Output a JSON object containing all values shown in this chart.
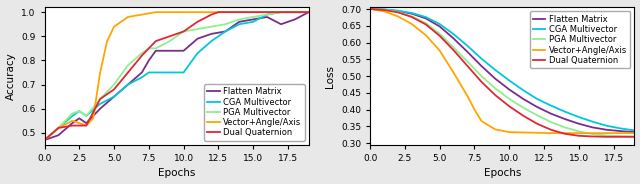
{
  "left": {
    "xlabel": "Epochs",
    "ylabel": "Accuracy",
    "xlim": [
      0,
      19
    ],
    "ylim": [
      0.45,
      1.02
    ],
    "xticks": [
      0.0,
      2.5,
      5.0,
      7.5,
      10.0,
      12.5,
      15.0,
      17.5
    ],
    "yticks": [
      0.5,
      0.6,
      0.7,
      0.8,
      0.9,
      1.0
    ],
    "series": {
      "Flatten Matrix": {
        "color": "#7b2d8b",
        "x": [
          0,
          1,
          2,
          2.5,
          3,
          4,
          5,
          6,
          7,
          7.5,
          8,
          9,
          10,
          11,
          12,
          13,
          14,
          15,
          16,
          17,
          18,
          19
        ],
        "y": [
          0.47,
          0.49,
          0.54,
          0.56,
          0.54,
          0.6,
          0.65,
          0.7,
          0.75,
          0.8,
          0.84,
          0.84,
          0.84,
          0.89,
          0.91,
          0.92,
          0.96,
          0.97,
          0.98,
          0.95,
          0.97,
          1.0
        ]
      },
      "CGA Multivector": {
        "color": "#00c8d8",
        "x": [
          0,
          1,
          2,
          2.5,
          3,
          4,
          5,
          6,
          7,
          7.5,
          8,
          9,
          10,
          11,
          12,
          13,
          14,
          15,
          16,
          17,
          18,
          19
        ],
        "y": [
          0.47,
          0.52,
          0.57,
          0.59,
          0.57,
          0.62,
          0.65,
          0.7,
          0.73,
          0.75,
          0.75,
          0.75,
          0.75,
          0.83,
          0.88,
          0.92,
          0.95,
          0.96,
          0.99,
          1.0,
          1.0,
          1.0
        ]
      },
      "PGA Multivector": {
        "color": "#90ee90",
        "x": [
          0,
          1,
          2,
          2.5,
          3,
          4,
          5,
          6,
          7,
          7.5,
          8,
          9,
          10,
          11,
          12,
          13,
          14,
          15,
          16,
          17,
          18,
          19
        ],
        "y": [
          0.47,
          0.52,
          0.58,
          0.59,
          0.57,
          0.64,
          0.7,
          0.78,
          0.83,
          0.85,
          0.85,
          0.88,
          0.92,
          0.93,
          0.94,
          0.95,
          0.97,
          0.98,
          0.99,
          1.0,
          1.0,
          1.0
        ]
      },
      "Vector+Angle/Axis": {
        "color": "#ffa500",
        "x": [
          0,
          1,
          2,
          2.5,
          3,
          3.5,
          4,
          4.5,
          5,
          6,
          7,
          8,
          9,
          10,
          11,
          12,
          13,
          14,
          15,
          16,
          17,
          18,
          19
        ],
        "y": [
          0.47,
          0.52,
          0.55,
          0.54,
          0.53,
          0.56,
          0.75,
          0.88,
          0.94,
          0.98,
          0.99,
          1.0,
          1.0,
          1.0,
          1.0,
          1.0,
          1.0,
          1.0,
          1.0,
          1.0,
          1.0,
          1.0,
          1.0
        ]
      },
      "Dual Quaternion": {
        "color": "#e32636",
        "x": [
          0,
          1,
          2,
          2.5,
          3,
          4,
          5,
          6,
          7,
          7.5,
          8,
          9,
          10,
          11,
          12,
          12.5,
          13,
          14,
          15,
          16,
          17,
          18,
          19
        ],
        "y": [
          0.47,
          0.52,
          0.53,
          0.53,
          0.53,
          0.64,
          0.68,
          0.75,
          0.82,
          0.85,
          0.88,
          0.9,
          0.92,
          0.96,
          0.99,
          1.0,
          1.0,
          1.0,
          1.0,
          1.0,
          1.0,
          1.0,
          1.0
        ]
      }
    },
    "legend_order": [
      "Flatten Matrix",
      "CGA Multivector",
      "PGA Multivector",
      "Vector+Angle/Axis",
      "Dual Quaternion"
    ],
    "legend_loc": "lower right"
  },
  "right": {
    "xlabel": "Epochs",
    "ylabel": "Loss",
    "xlim": [
      0,
      19
    ],
    "ylim": [
      0.295,
      0.705
    ],
    "xticks": [
      0.0,
      2.5,
      5.0,
      7.5,
      10.0,
      12.5,
      15.0,
      17.5
    ],
    "yticks": [
      0.3,
      0.35,
      0.4,
      0.45,
      0.5,
      0.55,
      0.6,
      0.65,
      0.7
    ],
    "series": {
      "Flatten Matrix": {
        "color": "#7b2d8b",
        "x": [
          0,
          1,
          2,
          3,
          4,
          5,
          6,
          7,
          8,
          9,
          10,
          11,
          12,
          13,
          14,
          15,
          16,
          17,
          18,
          19
        ],
        "y": [
          0.7,
          0.698,
          0.694,
          0.686,
          0.672,
          0.648,
          0.612,
          0.572,
          0.53,
          0.492,
          0.46,
          0.432,
          0.408,
          0.388,
          0.372,
          0.358,
          0.347,
          0.34,
          0.336,
          0.333
        ]
      },
      "CGA Multivector": {
        "color": "#00c8d8",
        "x": [
          0,
          1,
          2,
          3,
          4,
          5,
          6,
          7,
          8,
          9,
          10,
          11,
          12,
          13,
          14,
          15,
          16,
          17,
          18,
          19
        ],
        "y": [
          0.7,
          0.699,
          0.695,
          0.688,
          0.676,
          0.655,
          0.625,
          0.59,
          0.552,
          0.518,
          0.487,
          0.458,
          0.432,
          0.412,
          0.394,
          0.378,
          0.364,
          0.352,
          0.344,
          0.338
        ]
      },
      "PGA Multivector": {
        "color": "#90ee90",
        "x": [
          0,
          1,
          2,
          3,
          4,
          5,
          6,
          7,
          8,
          9,
          10,
          11,
          12,
          13,
          14,
          15,
          16,
          17,
          18,
          19
        ],
        "y": [
          0.7,
          0.698,
          0.691,
          0.678,
          0.658,
          0.626,
          0.585,
          0.543,
          0.5,
          0.463,
          0.432,
          0.406,
          0.383,
          0.363,
          0.347,
          0.335,
          0.327,
          0.323,
          0.321,
          0.32
        ]
      },
      "Vector+Angle/Axis": {
        "color": "#ffa500",
        "x": [
          0,
          1,
          2,
          3,
          4,
          5,
          6,
          7,
          7.5,
          8,
          9,
          10,
          11,
          12,
          13,
          14,
          15,
          16,
          17,
          18,
          19
        ],
        "y": [
          0.7,
          0.693,
          0.678,
          0.655,
          0.622,
          0.576,
          0.51,
          0.44,
          0.4,
          0.366,
          0.341,
          0.333,
          0.332,
          0.331,
          0.33,
          0.33,
          0.33,
          0.33,
          0.33,
          0.33,
          0.33
        ]
      },
      "Dual Quaternion": {
        "color": "#e32636",
        "x": [
          0,
          1,
          2,
          3,
          4,
          5,
          6,
          7,
          8,
          9,
          10,
          11,
          12,
          13,
          14,
          15,
          16,
          17,
          18,
          19
        ],
        "y": [
          0.7,
          0.697,
          0.69,
          0.676,
          0.654,
          0.62,
          0.577,
          0.53,
          0.483,
          0.443,
          0.41,
          0.382,
          0.358,
          0.34,
          0.328,
          0.322,
          0.32,
          0.319,
          0.319,
          0.319
        ]
      }
    },
    "legend_order": [
      "Flatten Matrix",
      "CGA Multivector",
      "PGA Multivector",
      "Vector+Angle/Axis",
      "Dual Quaternion"
    ],
    "legend_loc": "upper right"
  },
  "linewidth": 1.3,
  "bg_color": "#e8e8e8",
  "plot_bg": "#ffffff",
  "tick_fontsize": 6.5,
  "label_fontsize": 7.5,
  "legend_fontsize": 6.0
}
